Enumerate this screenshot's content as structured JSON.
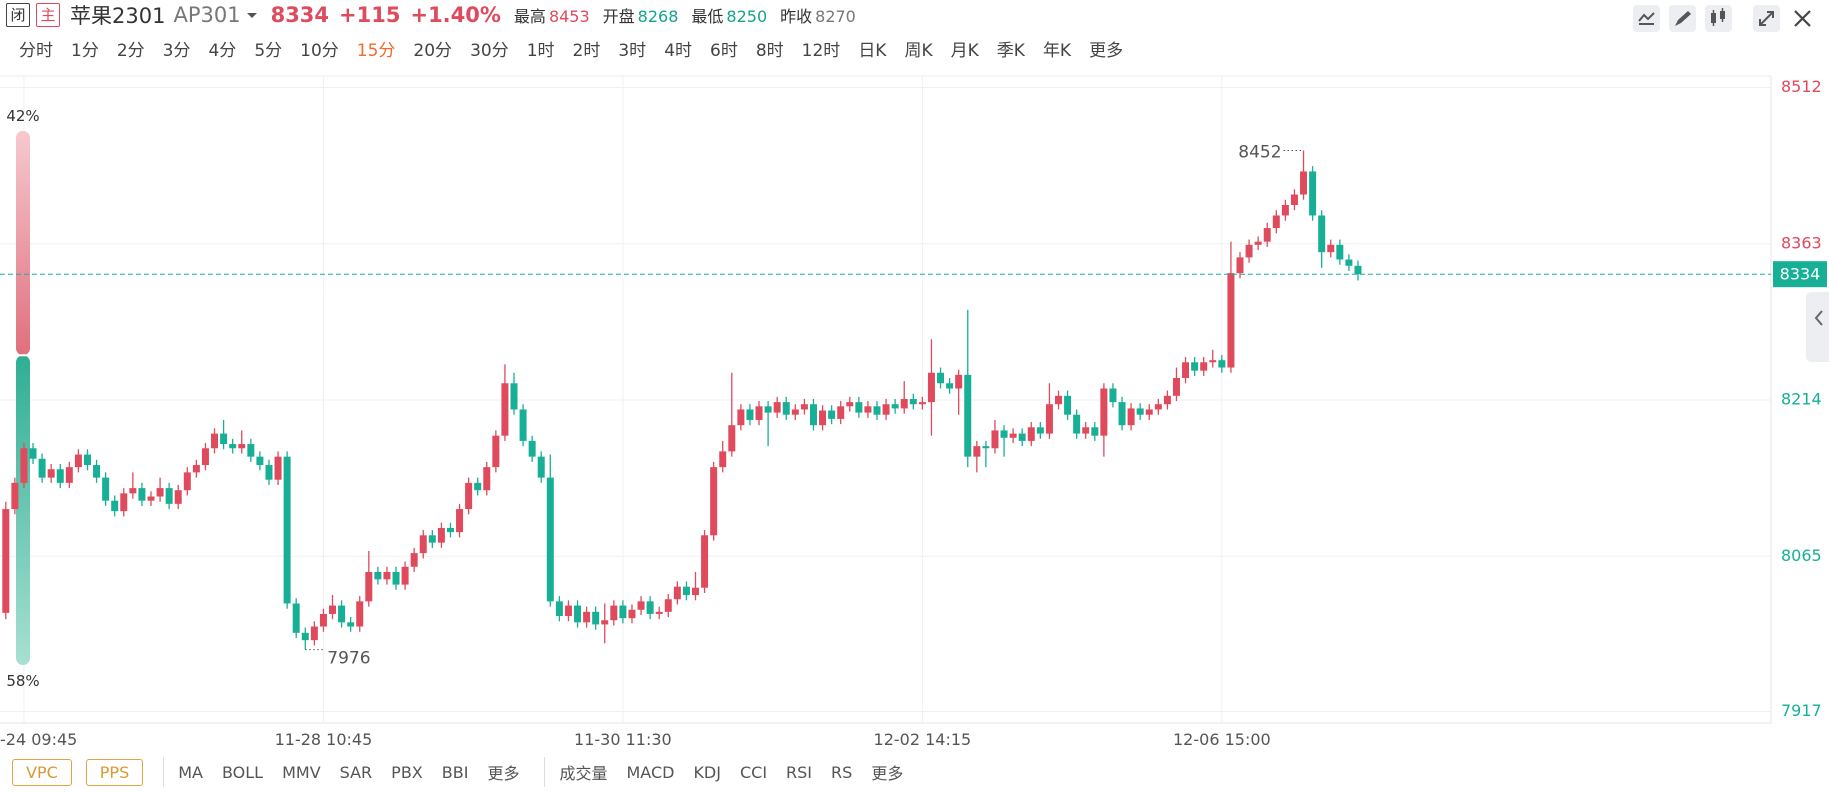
{
  "header": {
    "status": "闭",
    "mode": "主",
    "name": "苹果2301",
    "code": "AP301",
    "change": "+115",
    "change_pct": "+1.40%",
    "high_label": "最高",
    "open_label": "开盘",
    "low_label": "最低",
    "prev_close_label": "昨收"
  },
  "periods": {
    "items": [
      "分时",
      "1分",
      "2分",
      "3分",
      "4分",
      "5分",
      "10分",
      "15分",
      "20分",
      "30分",
      "1时",
      "2时",
      "3时",
      "4时",
      "6时",
      "8时",
      "12时",
      "日K",
      "周K",
      "月K",
      "季K",
      "年K",
      "更多"
    ],
    "selected": 7
  },
  "indicators": {
    "badges": [
      "VPC",
      "PPS"
    ],
    "main": [
      "MA",
      "BOLL",
      "MMV",
      "SAR",
      "PBX",
      "BBI",
      "更多"
    ],
    "sub": [
      "成交量",
      "MACD",
      "KDJ",
      "CCI",
      "RSI",
      "RS",
      "更多"
    ]
  },
  "sentiment": {
    "values": [
      42,
      58
    ],
    "value_labels": [
      "42%",
      "58%"
    ]
  },
  "chart_data": {
    "type": "candlestick",
    "last": 8334,
    "day_high": 8453,
    "day_open": 8268,
    "day_low": 8250,
    "prev_close": 8270,
    "up_color": "#e04a5d",
    "down_color": "#17b096",
    "ylim": [
      7906,
      8523
    ],
    "yticks": [
      7917,
      8065,
      8214,
      8363,
      8512
    ],
    "grid": true,
    "categories": [
      null,
      null,
      "-24 09:45",
      null,
      null,
      null,
      null,
      null,
      null,
      null,
      null,
      null,
      null,
      null,
      null,
      null,
      null,
      null,
      null,
      null,
      null,
      null,
      null,
      null,
      null,
      null,
      null,
      null,
      null,
      null,
      null,
      null,
      null,
      null,
      null,
      "11-28 10:45",
      null,
      null,
      null,
      null,
      null,
      null,
      null,
      null,
      null,
      null,
      null,
      null,
      null,
      null,
      null,
      null,
      null,
      null,
      null,
      null,
      null,
      null,
      null,
      null,
      null,
      null,
      null,
      null,
      null,
      null,
      null,
      null,
      "11-30 11:30",
      null,
      null,
      null,
      null,
      null,
      null,
      null,
      null,
      null,
      null,
      null,
      null,
      null,
      null,
      null,
      null,
      null,
      null,
      null,
      null,
      null,
      null,
      null,
      null,
      null,
      null,
      null,
      null,
      null,
      null,
      null,
      null,
      "12-02 14:15",
      null,
      null,
      null,
      null,
      null,
      null,
      null,
      null,
      null,
      null,
      null,
      null,
      null,
      null,
      null,
      null,
      null,
      null,
      null,
      null,
      null,
      null,
      null,
      null,
      null,
      null,
      null,
      null,
      null,
      null,
      null,
      null,
      "12-06 15:00",
      null,
      null,
      null,
      null,
      null,
      null,
      null,
      null,
      null,
      null,
      null,
      null,
      null,
      null,
      null
    ],
    "open": [
      8011,
      8110,
      8135,
      8168,
      8158,
      8140,
      8148,
      8135,
      8150,
      8162,
      8152,
      8140,
      8118,
      8108,
      8125,
      8130,
      8118,
      8122,
      8130,
      8115,
      8128,
      8145,
      8152,
      8168,
      8182,
      8172,
      8168,
      8172,
      8160,
      8152,
      8138,
      8160,
      8020,
      7992,
      7985,
      7998,
      8010,
      8018,
      8002,
      7998,
      8022,
      8050,
      8043,
      8050,
      8038,
      8055,
      8068,
      8085,
      8078,
      8092,
      8088,
      8110,
      8135,
      8128,
      8150,
      8180,
      8230,
      8205,
      8175,
      8160,
      8140,
      8022,
      8008,
      8018,
      8002,
      8012,
      8000,
      8004,
      8018,
      8006,
      8014,
      8022,
      8010,
      8012,
      8024,
      8036,
      8028,
      8035,
      8085,
      8150,
      8165,
      8190,
      8205,
      8195,
      8208,
      8202,
      8212,
      8200,
      8205,
      8210,
      8190,
      8204,
      8196,
      8208,
      8212,
      8202,
      8208,
      8200,
      8210,
      8206,
      8215,
      8210,
      8212,
      8240,
      8230,
      8225,
      8238,
      8160,
      8170,
      8168,
      8185,
      8178,
      8182,
      8175,
      8188,
      8182,
      8210,
      8218,
      8200,
      8182,
      8188,
      8180,
      8225,
      8212,
      8190,
      8206,
      8200,
      8205,
      8210,
      8218,
      8235,
      8250,
      8242,
      8250,
      8252,
      8245,
      8335,
      8350,
      8362,
      8365,
      8378,
      8390,
      8400,
      8410,
      8432,
      8390,
      8355,
      8362,
      8348,
      8342
    ],
    "high": [
      8117,
      8140,
      8173,
      8173,
      8163,
      8153,
      8153,
      8155,
      8167,
      8167,
      8157,
      8145,
      8123,
      8130,
      8145,
      8135,
      8127,
      8140,
      8135,
      8133,
      8150,
      8157,
      8173,
      8187,
      8195,
      8177,
      8185,
      8177,
      8165,
      8157,
      8165,
      8165,
      8025,
      7997,
      8003,
      8015,
      8028,
      8023,
      8007,
      8027,
      8070,
      8055,
      8055,
      8055,
      8060,
      8073,
      8090,
      8090,
      8097,
      8097,
      8115,
      8140,
      8140,
      8155,
      8185,
      8248,
      8240,
      8210,
      8180,
      8165,
      8162,
      8027,
      8023,
      8023,
      8017,
      8017,
      8020,
      8023,
      8023,
      8019,
      8027,
      8027,
      8017,
      8029,
      8041,
      8041,
      8050,
      8090,
      8155,
      8175,
      8240,
      8210,
      8210,
      8213,
      8213,
      8217,
      8217,
      8210,
      8215,
      8215,
      8209,
      8209,
      8213,
      8217,
      8217,
      8213,
      8213,
      8215,
      8215,
      8232,
      8220,
      8217,
      8272,
      8245,
      8235,
      8243,
      8300,
      8175,
      8175,
      8195,
      8190,
      8187,
      8187,
      8193,
      8193,
      8230,
      8223,
      8223,
      8205,
      8193,
      8193,
      8230,
      8230,
      8217,
      8211,
      8211,
      8210,
      8215,
      8223,
      8245,
      8255,
      8255,
      8255,
      8262,
      8257,
      8365,
      8355,
      8367,
      8370,
      8383,
      8395,
      8405,
      8415,
      8452,
      8437,
      8395,
      8367,
      8367,
      8353,
      8347
    ],
    "low": [
      8005,
      8105,
      8130,
      8153,
      8135,
      8135,
      8130,
      8130,
      8145,
      8147,
      8135,
      8113,
      8103,
      8103,
      8120,
      8113,
      8113,
      8117,
      8110,
      8110,
      8123,
      8140,
      8147,
      8163,
      8167,
      8163,
      8163,
      8155,
      8147,
      8133,
      8133,
      8015,
      7987,
      7976,
      7980,
      7993,
      8005,
      7997,
      7993,
      7993,
      8017,
      8038,
      8038,
      8033,
      8033,
      8050,
      8063,
      8073,
      8073,
      8083,
      8083,
      8105,
      8123,
      8123,
      8145,
      8175,
      8200,
      8170,
      8155,
      8135,
      8017,
      8003,
      8003,
      7997,
      7997,
      7995,
      7982,
      7999,
      8001,
      8001,
      8009,
      8005,
      8005,
      8007,
      8019,
      8023,
      8023,
      8030,
      8080,
      8145,
      8160,
      8185,
      8190,
      8190,
      8170,
      8197,
      8195,
      8195,
      8200,
      8185,
      8185,
      8191,
      8191,
      8203,
      8197,
      8197,
      8195,
      8195,
      8201,
      8201,
      8205,
      8205,
      8180,
      8225,
      8220,
      8200,
      8150,
      8145,
      8150,
      8163,
      8160,
      8173,
      8170,
      8170,
      8177,
      8177,
      8205,
      8195,
      8177,
      8177,
      8175,
      8160,
      8207,
      8185,
      8185,
      8195,
      8195,
      8200,
      8205,
      8213,
      8230,
      8237,
      8237,
      8245,
      8240,
      8240,
      8330,
      8345,
      8357,
      8360,
      8373,
      8385,
      8395,
      8405,
      8385,
      8340,
      8350,
      8343,
      8337,
      8328
    ],
    "close": [
      8110,
      8135,
      8168,
      8158,
      8140,
      8148,
      8135,
      8150,
      8162,
      8152,
      8140,
      8118,
      8108,
      8125,
      8130,
      8118,
      8122,
      8130,
      8115,
      8128,
      8145,
      8152,
      8168,
      8182,
      8172,
      8168,
      8172,
      8160,
      8152,
      8138,
      8160,
      8020,
      7992,
      7985,
      7998,
      8010,
      8018,
      8002,
      7998,
      8022,
      8050,
      8043,
      8050,
      8038,
      8055,
      8068,
      8085,
      8078,
      8092,
      8088,
      8110,
      8135,
      8128,
      8150,
      8180,
      8230,
      8205,
      8175,
      8160,
      8140,
      8022,
      8008,
      8018,
      8002,
      8012,
      8000,
      8004,
      8018,
      8006,
      8014,
      8022,
      8010,
      8012,
      8024,
      8036,
      8028,
      8035,
      8085,
      8150,
      8165,
      8190,
      8205,
      8195,
      8208,
      8202,
      8212,
      8200,
      8205,
      8210,
      8190,
      8204,
      8196,
      8208,
      8212,
      8202,
      8208,
      8200,
      8210,
      8206,
      8215,
      8210,
      8212,
      8240,
      8230,
      8225,
      8238,
      8160,
      8170,
      8168,
      8185,
      8178,
      8182,
      8175,
      8188,
      8182,
      8210,
      8218,
      8200,
      8182,
      8188,
      8180,
      8225,
      8212,
      8190,
      8206,
      8200,
      8205,
      8210,
      8218,
      8235,
      8250,
      8242,
      8250,
      8252,
      8245,
      8335,
      8350,
      8362,
      8365,
      8378,
      8390,
      8400,
      8410,
      8432,
      8390,
      8355,
      8362,
      8348,
      8342,
      8334
    ],
    "max_index": 143,
    "min_index": 33
  }
}
